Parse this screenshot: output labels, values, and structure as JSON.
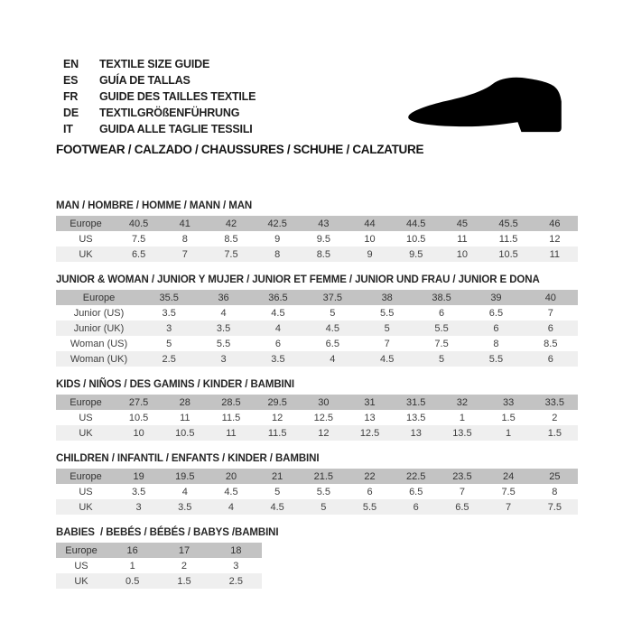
{
  "header": {
    "languages": [
      {
        "code": "EN",
        "text": "TEXTILE SIZE GUIDE"
      },
      {
        "code": "ES",
        "text": "GUÍA DE TALLAS"
      },
      {
        "code": "FR",
        "text": "GUIDE DES TAILLES TEXTILE"
      },
      {
        "code": "DE",
        "text": "TEXTILGRÖßENFÜHRUNG"
      },
      {
        "code": "IT",
        "text": "GUIDA ALLE TAGLIE TESSILI"
      }
    ],
    "category_line": "FOOTWEAR / CALZADO / CHAUSSURES / SCHUHE / CALZATURE",
    "shoe_icon": "dress-shoe-silhouette"
  },
  "colors": {
    "header_row_bg": "#c3c3c3",
    "alt_row_bg": "#efefef",
    "text": "#404040",
    "shoe": "#000000"
  },
  "tables": [
    {
      "id": "man",
      "title": "MAN / HOMBRE / HOMME / MANN / MAN",
      "rows": [
        {
          "label": "Europe",
          "values": [
            "40.5",
            "41",
            "42",
            "42.5",
            "43",
            "44",
            "44.5",
            "45",
            "45.5",
            "46"
          ]
        },
        {
          "label": "US",
          "values": [
            "7.5",
            "8",
            "8.5",
            "9",
            "9.5",
            "10",
            "10.5",
            "11",
            "11.5",
            "12"
          ]
        },
        {
          "label": "UK",
          "values": [
            "6.5",
            "7",
            "7.5",
            "8",
            "8.5",
            "9",
            "9.5",
            "10",
            "10.5",
            "11"
          ]
        }
      ]
    },
    {
      "id": "junior-woman",
      "title": "JUNIOR & WOMAN / JUNIOR Y MUJER / JUNIOR ET FEMME / JUNIOR UND FRAU / JUNIOR E DONA",
      "rows": [
        {
          "label": "Europe",
          "values": [
            "35.5",
            "36",
            "36.5",
            "37.5",
            "38",
            "38.5",
            "39",
            "40"
          ]
        },
        {
          "label": "Junior (US)",
          "values": [
            "3.5",
            "4",
            "4.5",
            "5",
            "5.5",
            "6",
            "6.5",
            "7"
          ]
        },
        {
          "label": "Junior (UK)",
          "values": [
            "3",
            "3.5",
            "4",
            "4.5",
            "5",
            "5.5",
            "6",
            "6"
          ]
        },
        {
          "label": "Woman (US)",
          "values": [
            "5",
            "5.5",
            "6",
            "6.5",
            "7",
            "7.5",
            "8",
            "8.5"
          ]
        },
        {
          "label": "Woman (UK)",
          "values": [
            "2.5",
            "3",
            "3.5",
            "4",
            "4.5",
            "5",
            "5.5",
            "6"
          ]
        }
      ]
    },
    {
      "id": "kids",
      "title": "KIDS / NIÑOS / DES GAMINS / KINDER / BAMBINI",
      "rows": [
        {
          "label": "Europe",
          "values": [
            "27.5",
            "28",
            "28.5",
            "29.5",
            "30",
            "31",
            "31.5",
            "32",
            "33",
            "33.5"
          ]
        },
        {
          "label": "US",
          "values": [
            "10.5",
            "11",
            "11.5",
            "12",
            "12.5",
            "13",
            "13.5",
            "1",
            "1.5",
            "2"
          ]
        },
        {
          "label": "UK",
          "values": [
            "10",
            "10.5",
            "11",
            "11.5",
            "12",
            "12.5",
            "13",
            "13.5",
            "1",
            "1.5"
          ]
        }
      ]
    },
    {
      "id": "children",
      "title": "CHILDREN / INFANTIL / ENFANTS / KINDER / BAMBINI",
      "rows": [
        {
          "label": "Europe",
          "values": [
            "19",
            "19.5",
            "20",
            "21",
            "21.5",
            "22",
            "22.5",
            "23.5",
            "24",
            "25"
          ]
        },
        {
          "label": "US",
          "values": [
            "3.5",
            "4",
            "4.5",
            "5",
            "5.5",
            "6",
            "6.5",
            "7",
            "7.5",
            "8"
          ]
        },
        {
          "label": "UK",
          "values": [
            "3",
            "3.5",
            "4",
            "4.5",
            "5",
            "5.5",
            "6",
            "6.5",
            "7",
            "7.5"
          ]
        }
      ]
    },
    {
      "id": "babies",
      "title": "BABIES  / BEBÉS / BÉBÉS / BABYS /BAMBINI",
      "rows": [
        {
          "label": "Europe",
          "values": [
            "16",
            "17",
            "18"
          ]
        },
        {
          "label": "US",
          "values": [
            "1",
            "2",
            "3"
          ]
        },
        {
          "label": "UK",
          "values": [
            "0.5",
            "1.5",
            "2.5"
          ]
        }
      ]
    }
  ]
}
